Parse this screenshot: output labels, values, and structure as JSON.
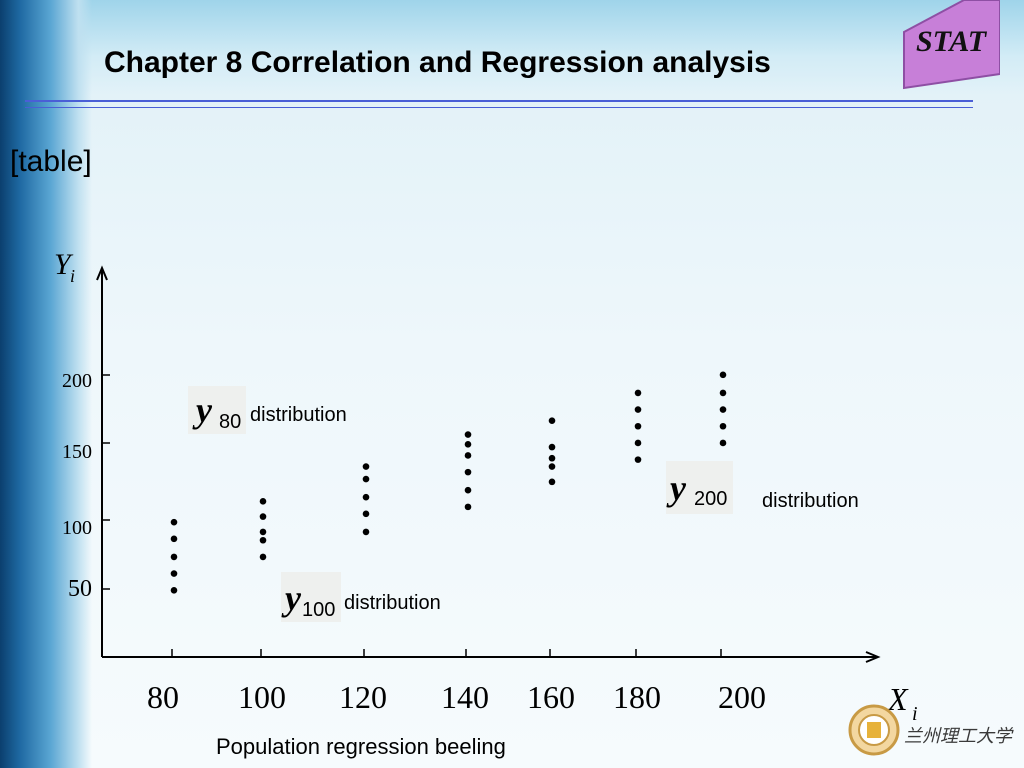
{
  "header": {
    "title": "Chapter 8 Correlation and Regression analysis",
    "badge": "STAT"
  },
  "slide": {
    "tag": "[table]",
    "caption": "Population regression beeling",
    "footer_logo_text": "兰州理工大学"
  },
  "colors": {
    "rule": "#4a5fd6",
    "badge_fill": "#c77fd8",
    "dot": "#000000"
  },
  "chart_data": {
    "type": "scatter",
    "y_axis_label": "Y",
    "y_axis_subscript": "i",
    "x_axis_label": "X",
    "x_axis_subscript": "i",
    "x_ticks": [
      80,
      100,
      120,
      140,
      160,
      180,
      200
    ],
    "y_ticks": [
      50,
      100,
      150,
      200
    ],
    "ylim": [
      0,
      260
    ],
    "grid": false,
    "groups": [
      {
        "x": 80,
        "y": [
          48,
          60,
          72,
          85,
          97
        ]
      },
      {
        "x": 100,
        "y": [
          72,
          84,
          90,
          101,
          112
        ]
      },
      {
        "x": 120,
        "y": [
          90,
          103,
          115,
          128,
          137
        ]
      },
      {
        "x": 140,
        "y": [
          108,
          120,
          133,
          145,
          153,
          160
        ]
      },
      {
        "x": 160,
        "y": [
          126,
          137,
          143,
          151,
          170
        ]
      },
      {
        "x": 180,
        "y": [
          142,
          154,
          166,
          178,
          190
        ]
      },
      {
        "x": 200,
        "y": [
          154,
          166,
          178,
          190,
          203
        ]
      }
    ],
    "annotations": [
      {
        "math_base": "y",
        "math_sub": "80",
        "text": "distribution"
      },
      {
        "math_base": "y",
        "math_sub": "100",
        "text": "distribution"
      },
      {
        "math_base": "y",
        "math_sub": "200",
        "text": "distribution"
      }
    ]
  }
}
